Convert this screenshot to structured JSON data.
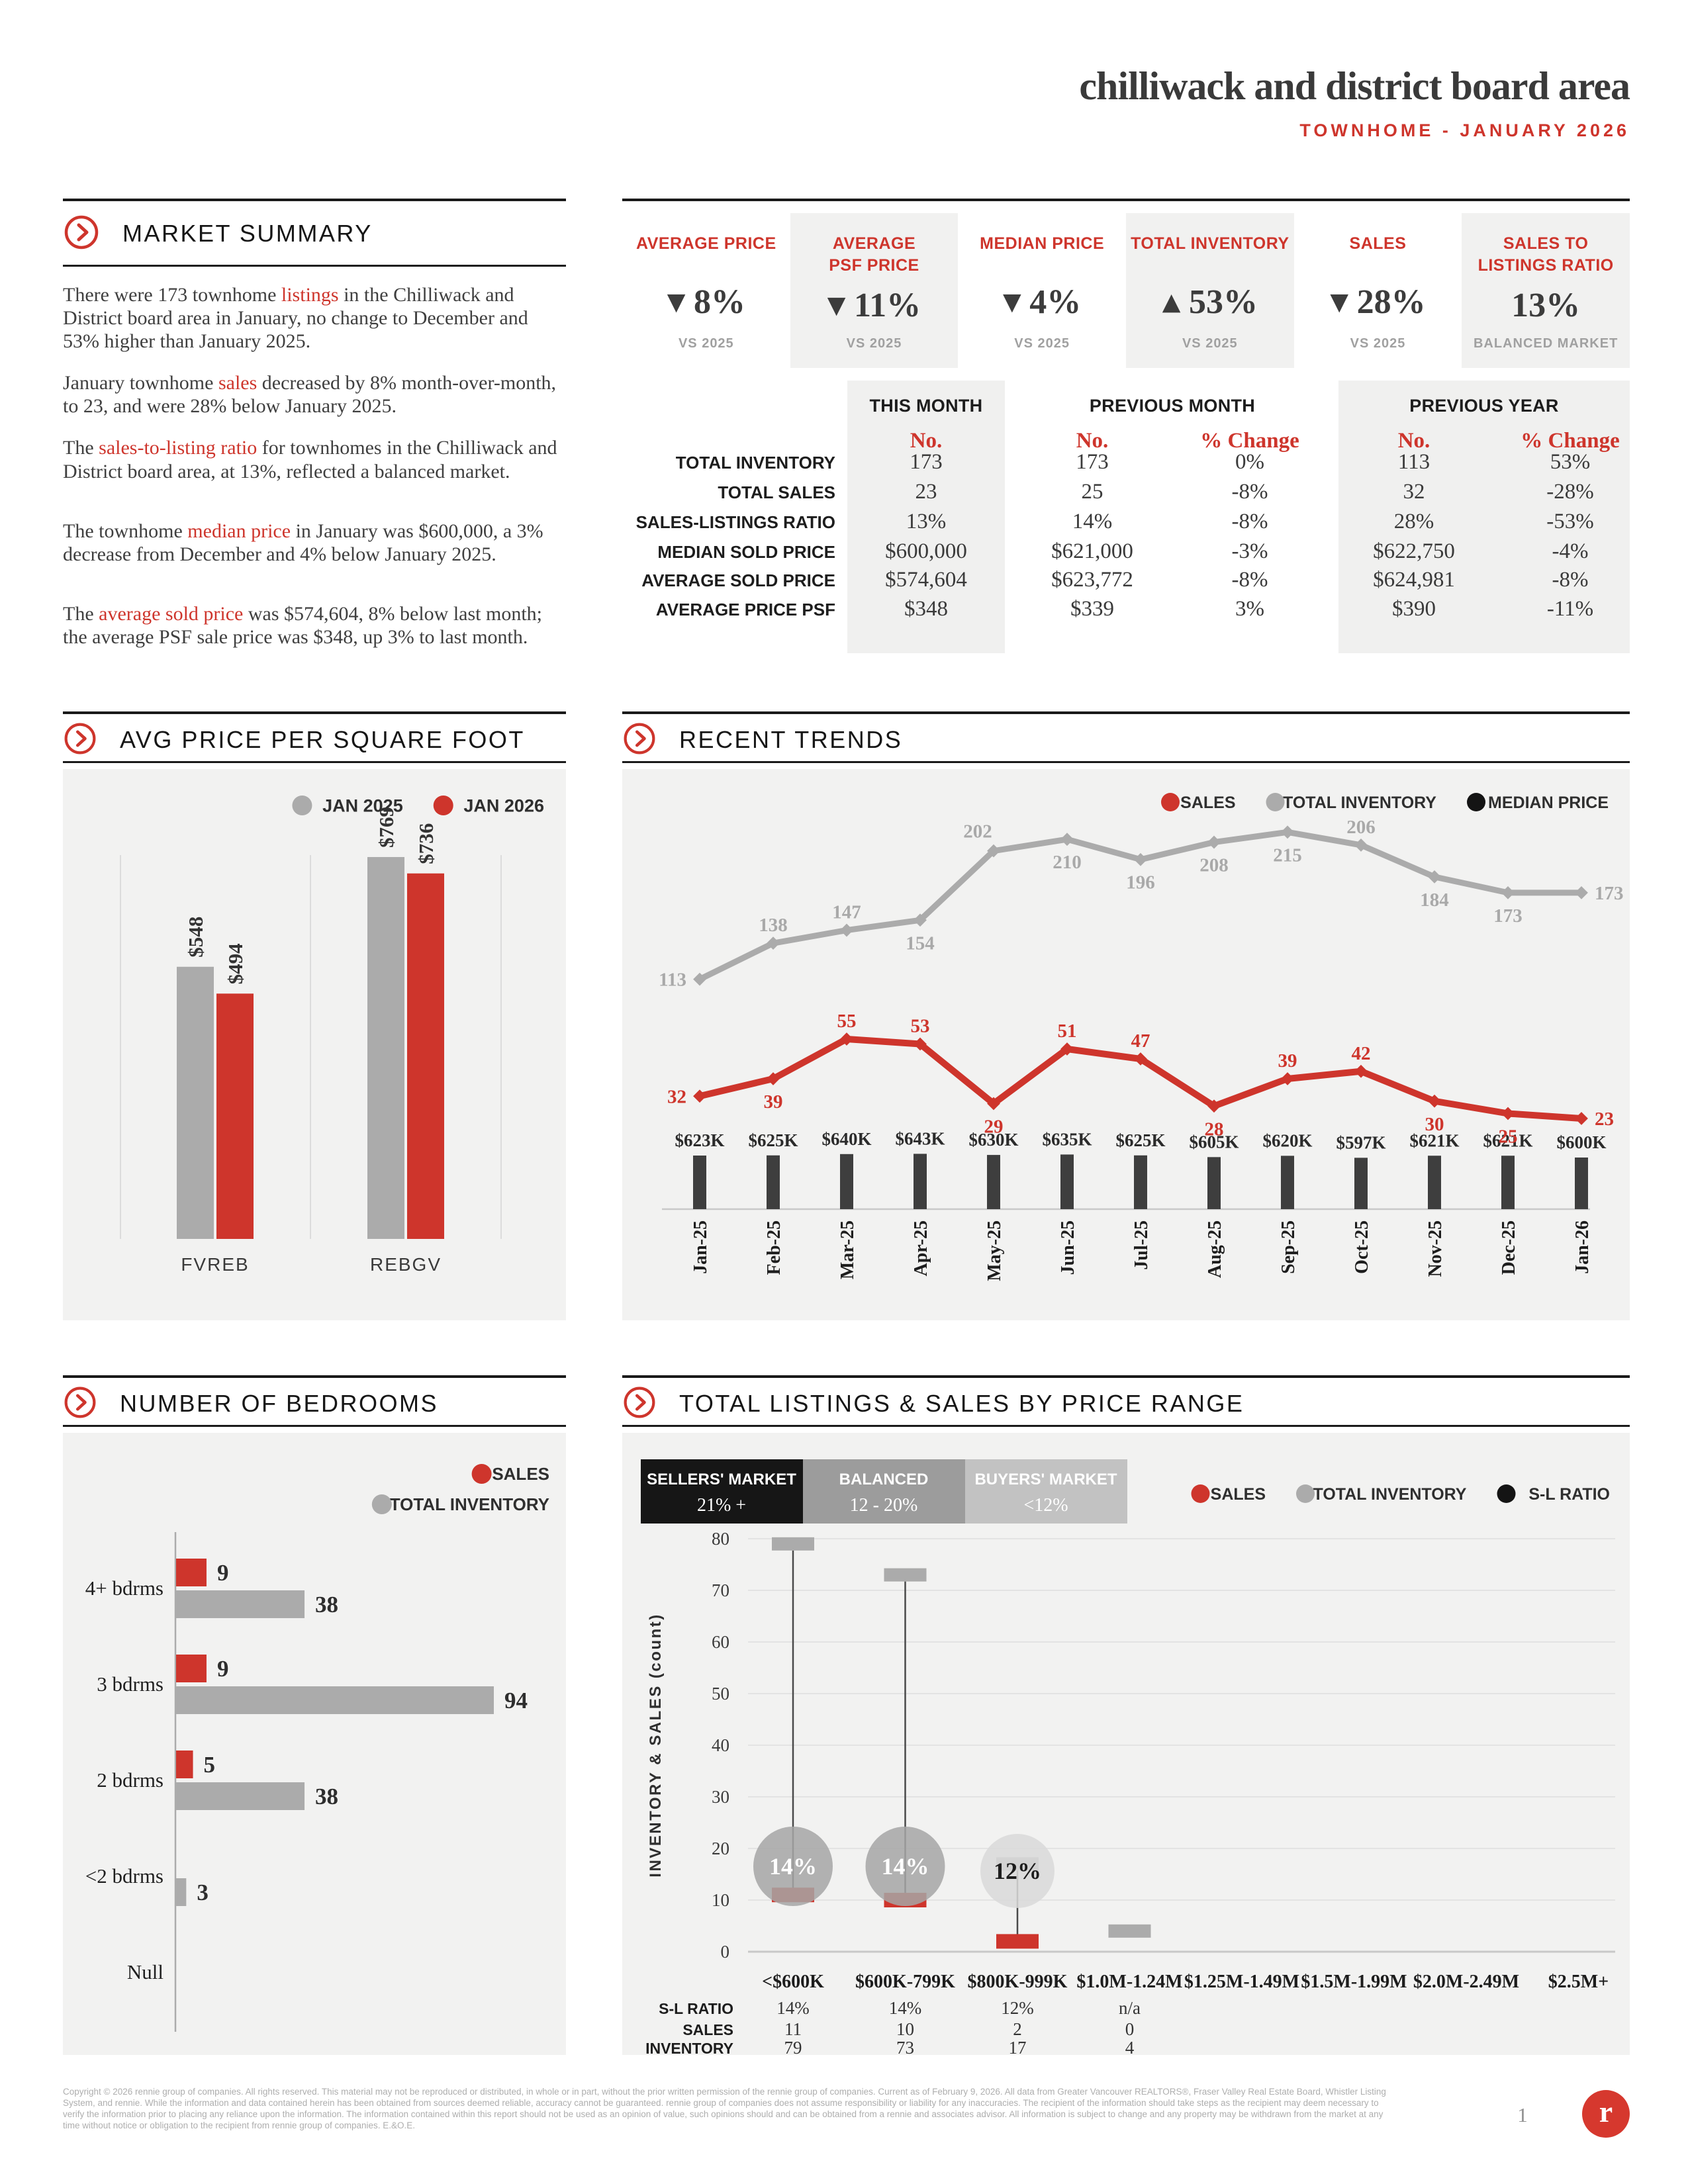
{
  "header": {
    "title": "chilliwack and district board area",
    "subtitle": "TOWNHOME - JANUARY 2026"
  },
  "palette": {
    "accent": "#ce352c",
    "dark": "#3c3c3c",
    "bar_dark": "#3e3e3e",
    "gray": "#ababab",
    "label_gray": "#a9a9a9",
    "panel": "#f2f2f1",
    "band": "#f0f0ef",
    "grid": "#e3e3e3"
  },
  "market_summary": {
    "title": "MARKET SUMMARY",
    "paragraphs": [
      {
        "segments": [
          {
            "text": "There were 173 townhome ",
            "red": false
          },
          {
            "text": "listings",
            "red": true
          },
          {
            "text": " in the Chilliwack and District board area in January, no change to December and 53% higher than January 2025.",
            "red": false
          }
        ]
      },
      {
        "segments": [
          {
            "text": "January townhome ",
            "red": false
          },
          {
            "text": "sales",
            "red": true
          },
          {
            "text": " decreased by 8% month-over-month, to 23, and were 28% below January 2025.",
            "red": false
          }
        ]
      },
      {
        "segments": [
          {
            "text": "The ",
            "red": false
          },
          {
            "text": "sales-to-listing ratio",
            "red": true
          },
          {
            "text": " for townhomes in the Chilliwack and District board area, at 13%, reflected a balanced market.",
            "red": false
          }
        ]
      },
      {
        "segments": [
          {
            "text": "The townhome ",
            "red": false
          },
          {
            "text": "median price",
            "red": true
          },
          {
            "text": " in January was $600,000, a 3% decrease from December and 4% below January 2025.",
            "red": false
          }
        ]
      },
      {
        "segments": [
          {
            "text": "The ",
            "red": false
          },
          {
            "text": "average sold price",
            "red": true
          },
          {
            "text": " was $574,604, 8% below last month; the average PSF sale price was $348, up 3% to last month.",
            "red": false
          }
        ]
      }
    ]
  },
  "kpis": [
    {
      "lines": [
        "AVERAGE PRICE"
      ],
      "arrow": "down",
      "value": "8%",
      "note": "VS 2025",
      "shaded": false
    },
    {
      "lines": [
        "AVERAGE",
        "PSF PRICE"
      ],
      "arrow": "down",
      "value": "11%",
      "note": "VS 2025",
      "shaded": true
    },
    {
      "lines": [
        "MEDIAN PRICE"
      ],
      "arrow": "down",
      "value": "4%",
      "note": "VS 2025",
      "shaded": false
    },
    {
      "lines": [
        "TOTAL INVENTORY"
      ],
      "arrow": "up",
      "value": "53%",
      "note": "VS 2025",
      "shaded": true
    },
    {
      "lines": [
        "SALES"
      ],
      "arrow": "down",
      "value": "28%",
      "note": "VS 2025",
      "shaded": false
    },
    {
      "lines": [
        "SALES TO",
        "LISTINGS RATIO"
      ],
      "arrow": null,
      "value": "13%",
      "note": "BALANCED MARKET",
      "shaded": true
    }
  ],
  "comparison_table": {
    "groups": [
      {
        "label": "THIS MONTH",
        "sub": [
          "No."
        ]
      },
      {
        "label": "PREVIOUS MONTH",
        "sub": [
          "No.",
          "% Change"
        ]
      },
      {
        "label": "PREVIOUS YEAR",
        "sub": [
          "No.",
          "% Change"
        ]
      }
    ],
    "rows": [
      {
        "label": "TOTAL INVENTORY",
        "values": [
          "173",
          "173",
          "0%",
          "113",
          "53%"
        ]
      },
      {
        "label": "TOTAL SALES",
        "values": [
          "23",
          "25",
          "-8%",
          "32",
          "-28%"
        ]
      },
      {
        "label": "SALES-LISTINGS RATIO",
        "values": [
          "13%",
          "14%",
          "-8%",
          "28%",
          "-53%"
        ]
      },
      {
        "label": "MEDIAN SOLD PRICE",
        "values": [
          "$600,000",
          "$621,000",
          "-3%",
          "$622,750",
          "-4%"
        ]
      },
      {
        "label": "AVERAGE SOLD PRICE",
        "values": [
          "$574,604",
          "$623,772",
          "-8%",
          "$624,981",
          "-8%"
        ]
      },
      {
        "label": "AVERAGE PRICE PSF",
        "values": [
          "$348",
          "$339",
          "3%",
          "$390",
          "-11%"
        ]
      }
    ]
  },
  "chart_data": [
    {
      "type": "bar",
      "title": "AVG PRICE PER SQUARE FOOT",
      "categories": [
        "FVREB",
        "REBGV"
      ],
      "series": [
        {
          "name": "JAN 2025",
          "color": "#ababab",
          "values": [
            548,
            769
          ],
          "labels": [
            "$548",
            "$769"
          ]
        },
        {
          "name": "JAN 2026",
          "color": "#ce352c",
          "values": [
            494,
            736
          ],
          "labels": [
            "$494",
            "$736"
          ]
        }
      ],
      "ylim": [
        0,
        800
      ],
      "legend_position": "top-right"
    },
    {
      "type": "line",
      "title": "RECENT TRENDS",
      "x": [
        "Jan-25",
        "Feb-25",
        "Mar-25",
        "Apr-25",
        "May-25",
        "Jun-25",
        "Jul-25",
        "Aug-25",
        "Sep-25",
        "Oct-25",
        "Nov-25",
        "Dec-25",
        "Jan-26"
      ],
      "series": [
        {
          "name": "SALES",
          "type": "line",
          "color": "#ce352c",
          "values": [
            32,
            39,
            55,
            53,
            29,
            51,
            47,
            28,
            39,
            42,
            30,
            25,
            23
          ]
        },
        {
          "name": "TOTAL INVENTORY",
          "type": "line",
          "color": "#ababab",
          "values": [
            113,
            138,
            147,
            154,
            202,
            210,
            196,
            208,
            215,
            206,
            184,
            173,
            173
          ]
        },
        {
          "name": "MEDIAN PRICE",
          "type": "bar",
          "color": "#141414",
          "values_k": [
            623,
            625,
            640,
            643,
            630,
            635,
            625,
            605,
            620,
            597,
            621,
            621,
            600
          ],
          "labels": [
            "$623K",
            "$625K",
            "$640K",
            "$643K",
            "$630K",
            "$635K",
            "$625K",
            "$605K",
            "$620K",
            "$597K",
            "$621K",
            "$621K",
            "$600K"
          ]
        }
      ],
      "legend_position": "top-right"
    },
    {
      "type": "bar-horizontal",
      "title": "NUMBER OF BEDROOMS",
      "categories": [
        "4+ bdrms",
        "3 bdrms",
        "2 bdrms",
        "<2 bdrms",
        "Null"
      ],
      "series": [
        {
          "name": "SALES",
          "color": "#ce352c",
          "values": [
            9,
            9,
            5,
            null,
            null
          ]
        },
        {
          "name": "TOTAL INVENTORY",
          "color": "#ababab",
          "values": [
            38,
            94,
            38,
            3,
            null
          ]
        }
      ],
      "xmax": 100,
      "legend_position": "top-right"
    },
    {
      "type": "lollipop",
      "title": "TOTAL LISTINGS & SALES BY PRICE RANGE",
      "market_legend": [
        {
          "label": "SELLERS' MARKET",
          "range": "21% +",
          "bg": "#161616",
          "fg": "#ffffff"
        },
        {
          "label": "BALANCED",
          "range": "12 - 20%",
          "bg": "#9c9c9c",
          "fg": "#ffffff"
        },
        {
          "label": "BUYERS' MARKET",
          "range": "<12%",
          "bg": "#c2c2c2",
          "fg": "#ffffff"
        }
      ],
      "legend": [
        {
          "name": "SALES",
          "color": "#ce352c"
        },
        {
          "name": "TOTAL INVENTORY",
          "color": "#ababab"
        },
        {
          "name": "S-L RATIO",
          "color": "#141414"
        }
      ],
      "categories": [
        "<$600K",
        "$600K-799K",
        "$800K-999K",
        "$1.0M-1.24M",
        "$1.25M-1.49M",
        "$1.5M-1.99M",
        "$2.0M-2.49M",
        "$2.5M+"
      ],
      "sl_ratio": [
        "14%",
        "14%",
        "12%",
        "n/a",
        "",
        "",
        "",
        ""
      ],
      "sales": [
        11,
        10,
        2,
        0,
        null,
        null,
        null,
        null
      ],
      "inventory": [
        79,
        73,
        17,
        4,
        null,
        null,
        null,
        null
      ],
      "bubble_styles": [
        {
          "fill": "#a6a6a6",
          "text": "#ffffff"
        },
        {
          "fill": "#a6a6a6",
          "text": "#ffffff"
        },
        {
          "fill": "#d9d9d9",
          "text": "#1d1d1d"
        },
        null,
        null,
        null,
        null,
        null
      ],
      "ylabel": "INVENTORY & SALES (count)",
      "yticks": [
        0,
        10,
        20,
        30,
        40,
        50,
        60,
        70,
        80
      ],
      "table_row_labels": [
        "S-L RATIO",
        "SALES",
        "INVENTORY"
      ],
      "legend_position": "top-right"
    }
  ],
  "footer": {
    "disclaimer": "Copyright © 2026 rennie group of companies. All rights reserved. This material may not be reproduced or distributed, in whole or in part, without the prior written permission of the rennie group of companies. Current as of February 9, 2026. All data from Greater Vancouver REALTORS®, Fraser Valley Real Estate Board, Whistler Listing System, and rennie. While the information and data contained herein has been obtained from sources deemed reliable, accuracy cannot be guaranteed. rennie group of companies does not assume responsibility or liability for any inaccuracies. The recipient of the information should take steps as the recipient may deem necessary to verify the information prior to placing any reliance upon the information. The information contained within this report should not be used as an opinion of value, such opinions should and can be obtained from a rennie and associates advisor. All information is subject to change and any property may be withdrawn from the market at any time without notice or obligation to the recipient from rennie group of companies. E.&O.E.",
    "page_number": "1",
    "logo_letter": "r"
  }
}
